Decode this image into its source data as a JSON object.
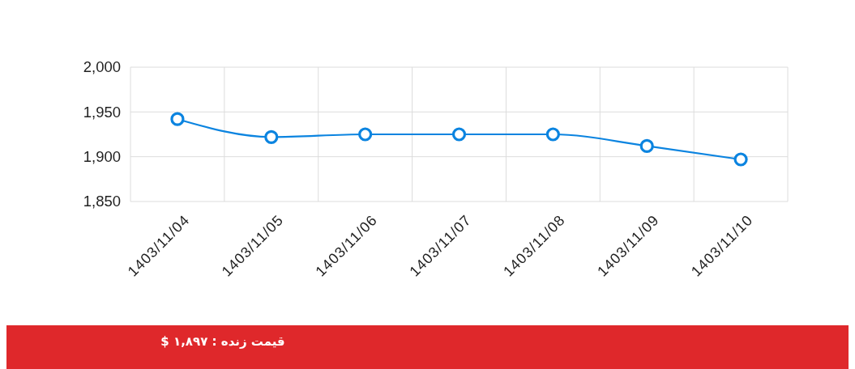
{
  "chart_data": {
    "type": "line",
    "categories": [
      "1403/11/04",
      "1403/11/05",
      "1403/11/06",
      "1403/11/07",
      "1403/11/08",
      "1403/11/09",
      "1403/11/10"
    ],
    "series": [
      {
        "color": "#0b84e0",
        "values": [
          1942,
          1922,
          1925,
          1925,
          1925,
          1912,
          1897
        ]
      }
    ],
    "ylim": [
      1850,
      2000
    ],
    "yticks": [
      {
        "value": 1850,
        "label": "1,850"
      },
      {
        "value": 1900,
        "label": "1,900"
      },
      {
        "value": 1950,
        "label": "1,950"
      },
      {
        "value": 2000,
        "label": "2,000"
      }
    ],
    "grid": true,
    "marker": "circle",
    "line_style": "solid",
    "annotations": [
      "قیمت زنده : ۱,۸۹۷ $"
    ]
  }
}
